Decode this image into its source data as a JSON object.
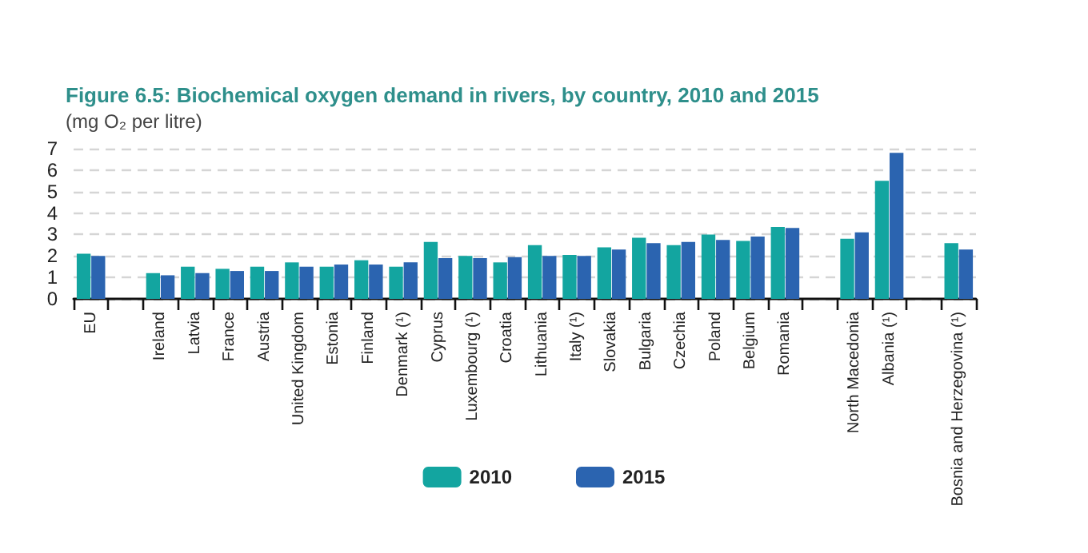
{
  "chart_data": {
    "type": "bar",
    "title": "Figure 6.5: Biochemical oxygen demand in rivers, by country, 2010 and 2015",
    "subtitle": "(mg O₂ per litre)",
    "categories": [
      "EU",
      null,
      "Ireland",
      "Latvia",
      "France",
      "Austria",
      "United Kingdom",
      "Estonia",
      "Finland",
      "Denmark (¹)",
      "Cyprus",
      "Luxembourg (¹)",
      "Croatia",
      "Lithuania",
      "Italy (¹)",
      "Slovakia",
      "Bulgaria",
      "Czechia",
      "Poland",
      "Belgium",
      "Romania",
      null,
      "North Macedonia",
      "Albania (¹)",
      null,
      "Bosnia and Herzegovina (¹)"
    ],
    "series": [
      {
        "name": "2010",
        "color": "#13a5a0",
        "values": [
          2.1,
          null,
          1.2,
          1.5,
          1.4,
          1.5,
          1.7,
          1.5,
          1.8,
          1.5,
          2.65,
          2.0,
          1.7,
          2.5,
          2.05,
          2.4,
          2.85,
          2.5,
          3.0,
          2.7,
          3.35,
          null,
          2.8,
          5.5,
          null,
          2.6
        ]
      },
      {
        "name": "2015",
        "color": "#2b64b0",
        "values": [
          2.0,
          null,
          1.1,
          1.2,
          1.3,
          1.3,
          1.5,
          1.6,
          1.6,
          1.7,
          1.9,
          1.9,
          1.95,
          2.0,
          2.0,
          2.3,
          2.6,
          2.65,
          2.75,
          2.9,
          3.3,
          null,
          3.1,
          6.8,
          null,
          2.3
        ]
      }
    ],
    "ylim": [
      0,
      7
    ],
    "yticks": [
      0,
      1,
      2,
      3,
      4,
      5,
      6,
      7
    ],
    "grid": "y",
    "legend": "bottom"
  }
}
